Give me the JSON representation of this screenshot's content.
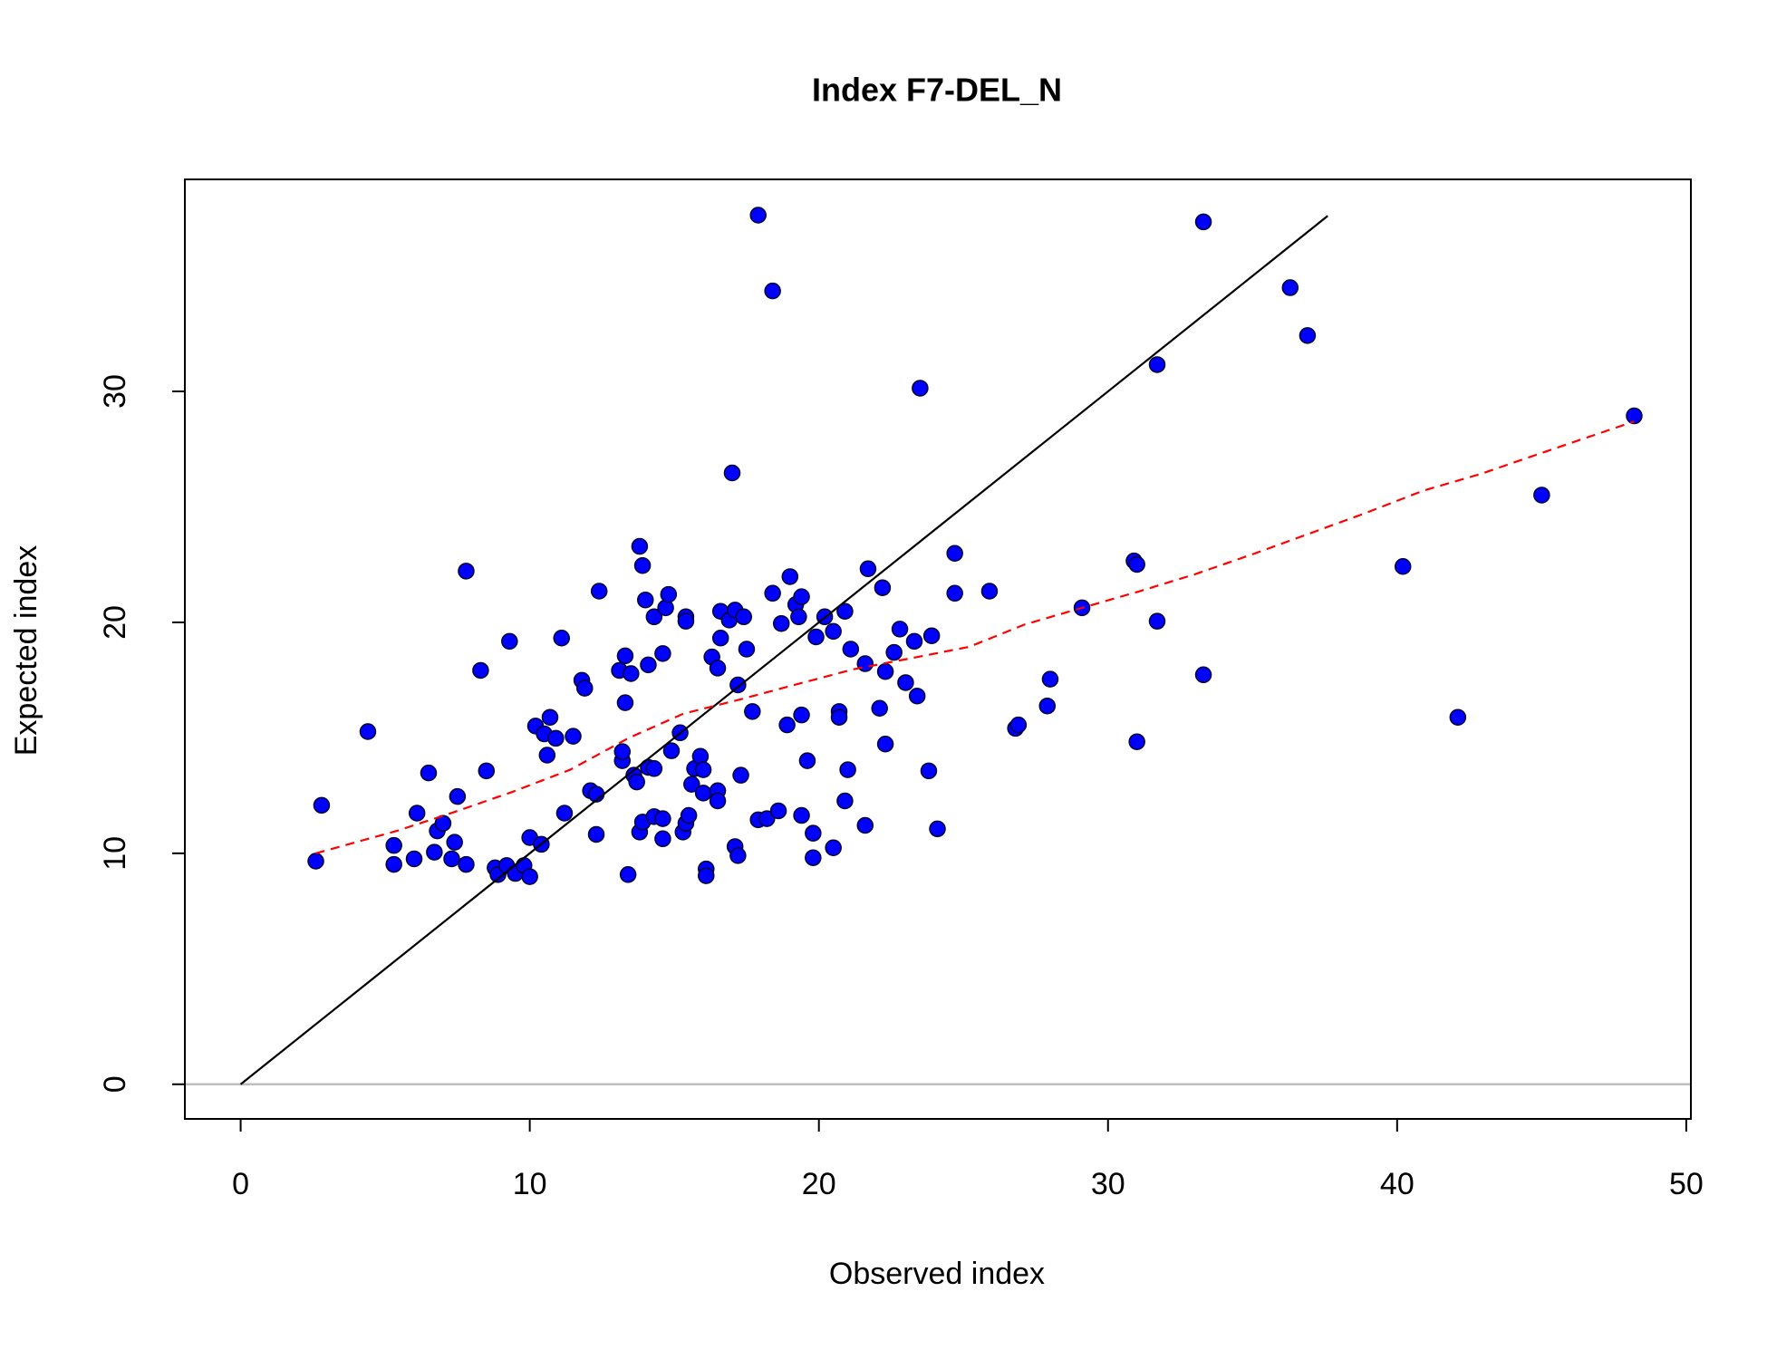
{
  "chart_data": {
    "type": "scatter",
    "title": "Index F7-DEL_N",
    "x_label": "Observed index",
    "y_label": "Expected index",
    "xlim": [
      -1.93,
      50.16
    ],
    "ylim": [
      -1.5,
      39.18
    ],
    "xticks": [
      0,
      10,
      20,
      30,
      40,
      50
    ],
    "yticks": [
      0,
      10,
      20,
      30
    ],
    "hline": {
      "value": 0,
      "color": "#bebebe"
    },
    "series": [
      {
        "kind": "scatter",
        "color": "#0000ff",
        "x": [
          2.6,
          2.8,
          4.4,
          5.3,
          5.3,
          6.0,
          6.1,
          6.5,
          6.7,
          6.8,
          7.0,
          7.3,
          7.4,
          7.5,
          7.8,
          7.8,
          8.3,
          8.5,
          8.8,
          8.9,
          9.2,
          9.3,
          9.5,
          9.8,
          10.0,
          10.0,
          10.2,
          10.4,
          10.5,
          10.7,
          10.6,
          10.9,
          11.1,
          11.2,
          11.5,
          11.8,
          11.9,
          12.1,
          12.3,
          12.4,
          12.3,
          13.1,
          13.2,
          13.2,
          13.3,
          13.3,
          13.5,
          13.4,
          13.6,
          13.7,
          13.8,
          13.8,
          13.9,
          13.9,
          14.0,
          14.1,
          14.1,
          14.3,
          14.3,
          14.3,
          14.6,
          14.6,
          14.6,
          14.7,
          14.8,
          14.9,
          15.2,
          15.3,
          15.4,
          15.4,
          15.4,
          15.5,
          15.6,
          15.7,
          15.9,
          16.0,
          16.0,
          16.1,
          16.1,
          16.3,
          16.5,
          16.5,
          16.5,
          16.6,
          16.6,
          16.9,
          17.0,
          17.1,
          17.2,
          17.1,
          17.2,
          17.3,
          17.4,
          17.5,
          17.7,
          17.9,
          17.9,
          18.2,
          18.4,
          18.4,
          18.6,
          18.7,
          18.9,
          19.0,
          19.2,
          19.3,
          19.4,
          19.4,
          19.4,
          19.6,
          19.8,
          19.8,
          19.9,
          20.2,
          20.5,
          20.5,
          20.7,
          20.7,
          20.9,
          20.9,
          21.0,
          21.1,
          21.6,
          21.6,
          21.7,
          22.1,
          22.2,
          22.3,
          22.3,
          22.6,
          22.8,
          23.0,
          23.3,
          23.4,
          23.5,
          23.8,
          23.9,
          24.1,
          24.7,
          24.7,
          25.9,
          26.8,
          26.9,
          27.9,
          28.0,
          29.1,
          30.9,
          31.0,
          31.0,
          31.7,
          31.7,
          33.3,
          33.3,
          36.3,
          36.9,
          40.2,
          42.1,
          45.0,
          48.2
        ],
        "values": [
          9.66,
          12.08,
          15.27,
          10.34,
          9.52,
          9.76,
          11.74,
          13.48,
          10.05,
          10.97,
          11.3,
          9.76,
          10.48,
          12.46,
          9.52,
          22.22,
          17.92,
          13.57,
          9.37,
          9.08,
          9.47,
          19.18,
          9.13,
          9.47,
          8.99,
          10.68,
          15.51,
          10.39,
          15.17,
          15.89,
          14.25,
          14.98,
          19.32,
          11.74,
          15.07,
          17.49,
          17.15,
          12.71,
          12.56,
          21.35,
          10.82,
          17.92,
          14.01,
          14.4,
          16.52,
          18.55,
          17.78,
          9.08,
          13.38,
          13.09,
          10.92,
          23.29,
          22.46,
          11.35,
          20.97,
          18.16,
          13.72,
          11.59,
          20.24,
          13.67,
          18.65,
          11.5,
          10.63,
          20.63,
          21.21,
          14.44,
          15.22,
          10.92,
          20.24,
          20.05,
          11.3,
          11.64,
          12.99,
          13.67,
          14.2,
          13.62,
          12.61,
          9.32,
          9.03,
          18.5,
          12.71,
          12.27,
          18.02,
          19.32,
          20.48,
          20.1,
          26.47,
          20.53,
          17.29,
          10.29,
          9.9,
          13.38,
          20.24,
          18.84,
          16.14,
          11.45,
          37.63,
          11.5,
          34.35,
          21.26,
          11.84,
          19.95,
          15.56,
          21.98,
          20.77,
          20.24,
          21.11,
          11.64,
          15.99,
          14.01,
          10.87,
          9.81,
          19.37,
          20.24,
          19.61,
          10.24,
          16.14,
          15.89,
          20.48,
          12.27,
          13.62,
          18.84,
          11.21,
          18.21,
          22.32,
          16.28,
          21.5,
          17.87,
          14.73,
          18.7,
          19.71,
          17.39,
          19.18,
          16.81,
          30.14,
          13.57,
          19.42,
          11.06,
          22.99,
          21.26,
          21.35,
          15.41,
          15.56,
          16.38,
          17.54,
          20.63,
          22.66,
          22.51,
          14.83,
          20.05,
          31.16,
          17.73,
          37.34,
          34.49,
          32.42,
          22.42,
          15.89,
          25.51,
          28.94
        ]
      },
      {
        "kind": "line",
        "color": "#000000",
        "x": [
          0,
          37.6
        ],
        "values": [
          0,
          37.6
        ]
      },
      {
        "kind": "line",
        "color": "#ff0000",
        "dash": true,
        "x": [
          2.6,
          5.4,
          7.4,
          9.4,
          11.4,
          13.4,
          15.3,
          17.3,
          19.3,
          21.2,
          23.2,
          25.2,
          27.1,
          29.1,
          31.1,
          33.0,
          35.0,
          37.0,
          38.9,
          40.9,
          42.9,
          44.8,
          48.2
        ],
        "values": [
          10.0,
          10.97,
          11.79,
          12.66,
          13.62,
          14.98,
          16.04,
          16.67,
          17.34,
          17.97,
          18.45,
          18.94,
          19.9,
          20.63,
          21.35,
          22.08,
          22.95,
          23.86,
          24.73,
          25.7,
          26.43,
          27.25,
          28.7
        ]
      }
    ]
  }
}
